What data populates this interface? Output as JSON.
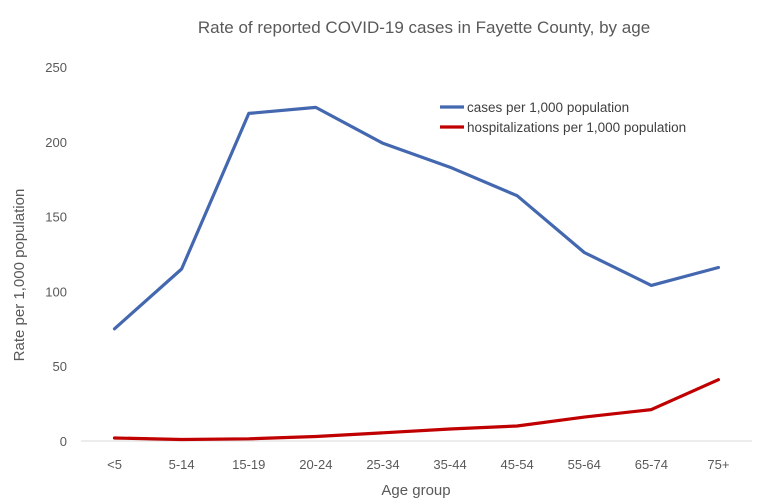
{
  "chart_data": {
    "type": "line",
    "title": "Rate of reported COVID-19 cases in Fayette County, by age",
    "xlabel": "Age group",
    "ylabel": "Rate per 1,000 population",
    "categories": [
      "<5",
      "5-14",
      "15-19",
      "20-24",
      "25-34",
      "35-44",
      "45-54",
      "55-64",
      "65-74",
      "75+"
    ],
    "ylim": [
      0,
      250
    ],
    "yticks": [
      "0",
      "50",
      "100",
      "150",
      "200",
      "250"
    ],
    "grid": false,
    "legend_position": "top-right",
    "series": [
      {
        "name": "cases per 1,000 population",
        "color": "#4468B0",
        "values": [
          75,
          115,
          219,
          223,
          199,
          183,
          164,
          126,
          104,
          116
        ]
      },
      {
        "name": "hospitalizations per 1,000 population",
        "color": "#C00000",
        "values": [
          2,
          1,
          1.5,
          3,
          5.5,
          8,
          10,
          16,
          21,
          41
        ]
      }
    ]
  }
}
